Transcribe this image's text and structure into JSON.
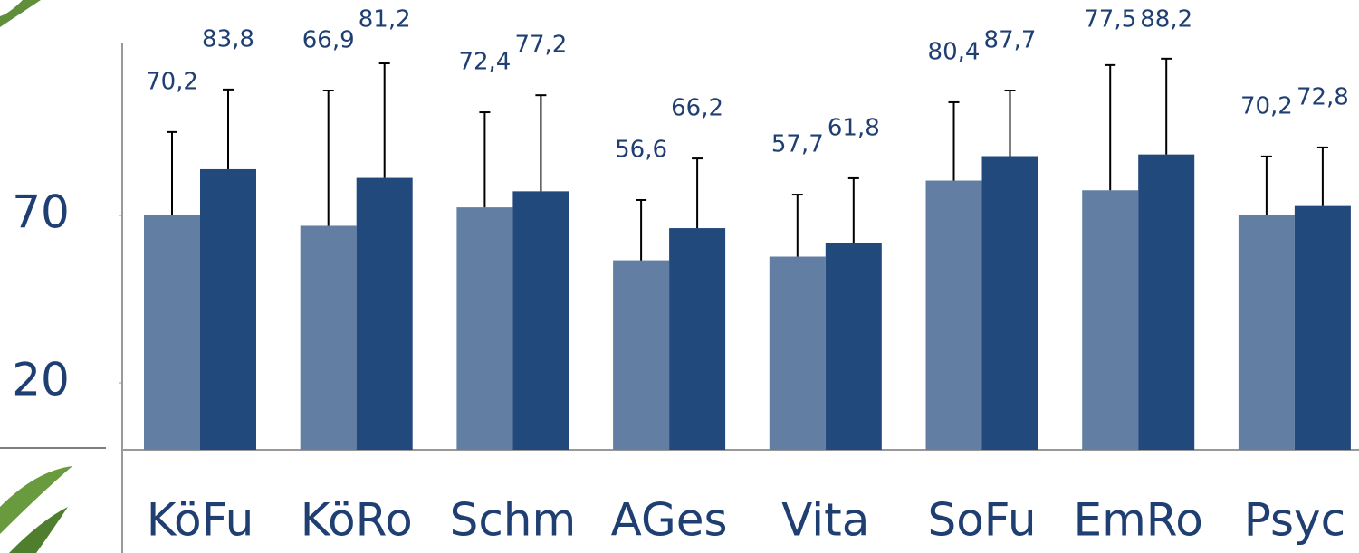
{
  "chart_data": {
    "type": "bar",
    "categories": [
      "KöFu",
      "KöRo",
      "Schm",
      "AGes",
      "Vita",
      "SoFu",
      "EmRo",
      "Psyc"
    ],
    "series": [
      {
        "color": "#627fa3",
        "values": [
          70.2,
          66.9,
          72.4,
          56.6,
          57.7,
          80.4,
          77.5,
          70.2
        ],
        "value_labels": [
          "70,2",
          "66,9",
          "72,4",
          "56,6",
          "57,7",
          "80,4",
          "77,5",
          "70,2"
        ],
        "errors": [
          24.7,
          40.4,
          28.4,
          18,
          18.5,
          23.4,
          37.4,
          17.4
        ]
      },
      {
        "color": "#22497c",
        "values": [
          83.8,
          81.2,
          77.2,
          66.2,
          61.8,
          87.7,
          88.2,
          72.8
        ],
        "value_labels": [
          "83,8",
          "81,2",
          "77,2",
          "66,2",
          "61,8",
          "87,7",
          "88,2",
          "72,8"
        ],
        "errors": [
          23.8,
          34.2,
          28.7,
          20.8,
          19.3,
          19.6,
          28.6,
          17.5
        ]
      }
    ],
    "ylim": [
      0,
      120
    ],
    "yticks": [
      20,
      70
    ],
    "grid": false
  }
}
